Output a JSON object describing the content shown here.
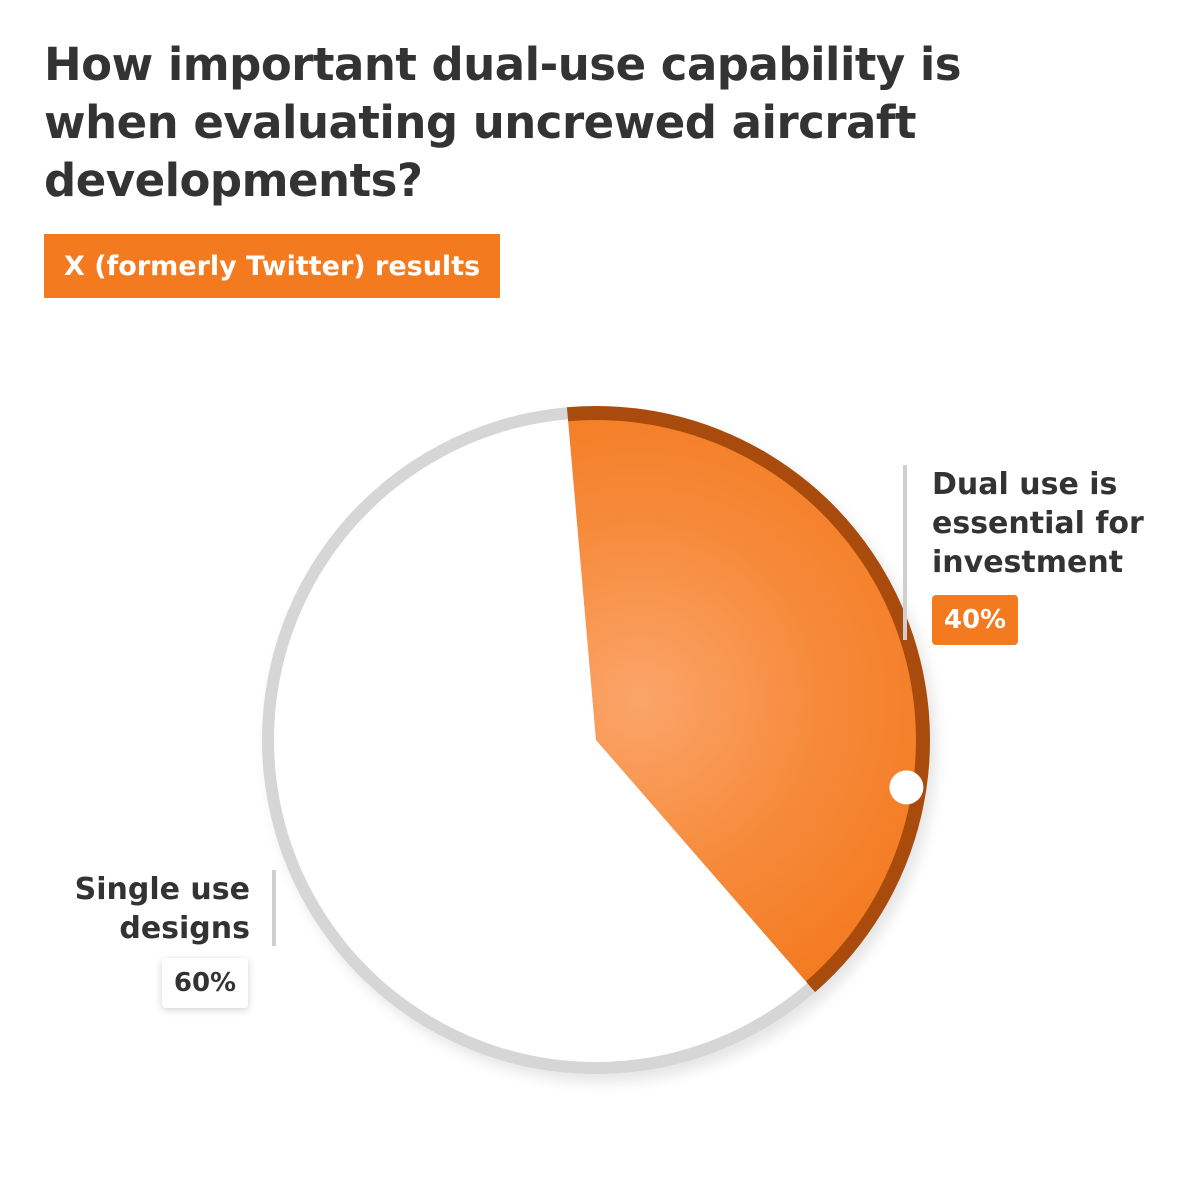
{
  "title": "How important dual-use capability is when evaluating uncrewed aircraft developments?",
  "subtitle": "X (formerly Twitter) results",
  "colors": {
    "accent": "#F47A20",
    "accent_dark": "#A94B0C",
    "neutral_slice": "#FFFFFF",
    "ring": "#D6D6D6",
    "text": "#333333"
  },
  "chart_data": {
    "type": "pie",
    "title": "How important dual-use capability is when evaluating uncrewed aircraft developments?",
    "subtitle": "X (formerly Twitter) results",
    "slices": [
      {
        "label": "Dual use is essential for investment",
        "value": 40,
        "display": "40%",
        "color": "#F47A20"
      },
      {
        "label": "Single use designs",
        "value": 60,
        "display": "60%",
        "color": "#FFFFFF"
      }
    ]
  }
}
